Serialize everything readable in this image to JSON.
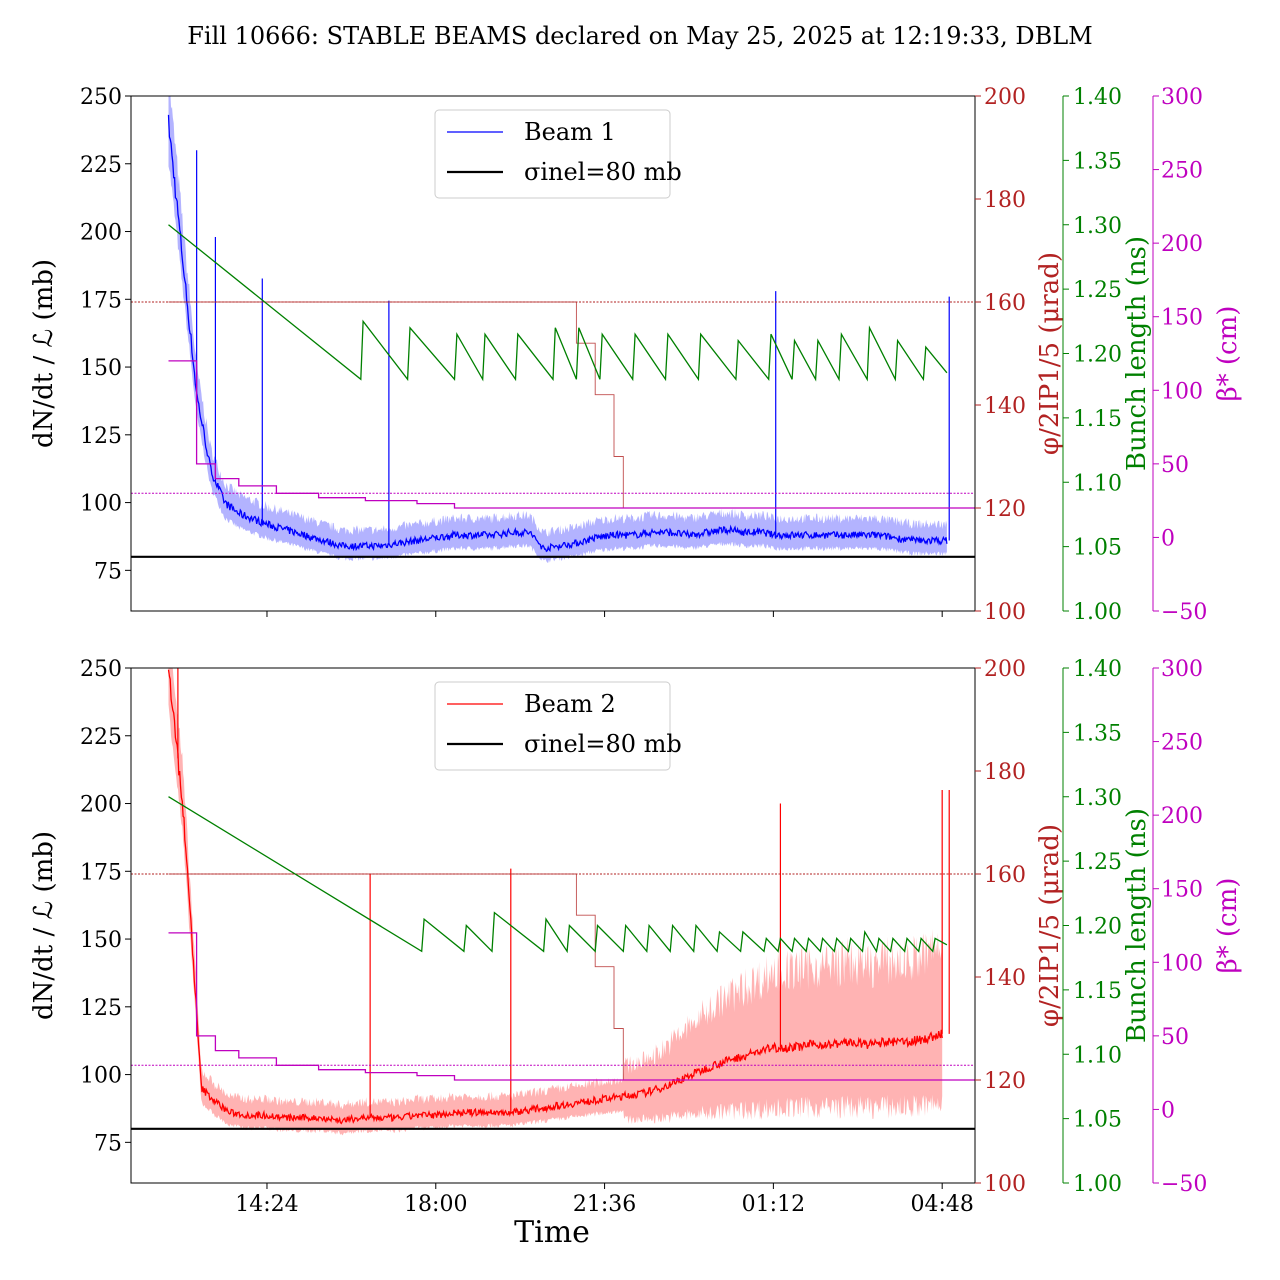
{
  "title": "Fill 10666: STABLE BEAMS declared on May 25, 2025 at 12:19:33, DBLM",
  "colors": {
    "beam1": "#0000ff",
    "beam1_band": "#9999ff",
    "beam2": "#ff0000",
    "beam2_band": "#ff9999",
    "bunch": "#008000",
    "crossing": "#b22222",
    "beta": "#bf00bf",
    "ref": "#000000"
  },
  "x_axis": {
    "label": "Time",
    "ticks": [
      "14:24",
      "18:00",
      "21:36",
      "01:12",
      "04:48"
    ],
    "tick_hours": [
      14.4,
      18.0,
      21.6,
      25.2,
      28.8
    ],
    "xlim_hours": [
      11.5,
      29.5
    ]
  },
  "axes_common": {
    "ylabel_main": "dN/dt / ℒ (mb)",
    "main_ylim": [
      60,
      250
    ],
    "main_ticks": [
      "75",
      "100",
      "125",
      "150",
      "175",
      "200",
      "225",
      "250"
    ],
    "crossing_label": "φ/2IP1/5 (μrad)",
    "crossing_ylim": [
      100,
      200
    ],
    "crossing_ticks": [
      "100",
      "120",
      "140",
      "160",
      "180",
      "200"
    ],
    "bunch_label": "Bunch length (ns)",
    "bunch_ylim": [
      1.0,
      1.4
    ],
    "bunch_ticks": [
      "1.00",
      "1.05",
      "1.10",
      "1.15",
      "1.20",
      "1.25",
      "1.30",
      "1.35",
      "1.40"
    ],
    "beta_label": "β* (cm)",
    "beta_ylim": [
      -50,
      300
    ],
    "beta_ticks": [
      "−50",
      "0",
      "50",
      "100",
      "150",
      "200",
      "250",
      "300"
    ],
    "ref_label": "σinel=80 mb",
    "ref_value": 80
  },
  "chart_data": [
    {
      "type": "line",
      "panel": "top",
      "legend_beam": "Beam 1",
      "legend_ref": "σinel=80 mb",
      "legend_position": "upper-center",
      "series": [
        {
          "name": "Beam 1",
          "x_hours": [
            12.3,
            12.6,
            12.9,
            13.2,
            13.5,
            13.8,
            14.1,
            14.4,
            14.8,
            15.2,
            15.6,
            16.0,
            16.4,
            16.8,
            17.2,
            17.6,
            18.0,
            18.4,
            18.8,
            19.2,
            19.6,
            20.0,
            20.3,
            20.6,
            21.0,
            21.4,
            21.8,
            22.2,
            22.6,
            23.0,
            23.4,
            23.8,
            24.2,
            24.6,
            25.0,
            25.2,
            25.4,
            25.8,
            26.2,
            26.6,
            27.0,
            27.4,
            27.8,
            28.2,
            28.6,
            28.9
          ],
          "values": [
            240,
            190,
            140,
            112,
            100,
            96,
            94,
            92,
            90,
            88,
            86,
            84,
            84,
            84,
            85,
            86,
            87,
            88,
            88,
            88,
            89,
            89,
            83,
            84,
            85,
            87,
            88,
            88,
            89,
            89,
            88,
            89,
            90,
            89,
            89,
            88,
            88,
            88,
            88,
            88,
            88,
            88,
            87,
            86,
            86,
            86
          ]
        },
        {
          "name": "Bunch length",
          "x_hours": [
            12.3,
            16.4,
            16.45,
            17.4,
            17.45,
            18.4,
            18.45,
            19.0,
            19.05,
            19.7,
            19.75,
            20.5,
            20.55,
            21.0,
            21.05,
            21.5,
            21.55,
            22.2,
            22.25,
            22.9,
            22.95,
            23.6,
            23.65,
            24.4,
            24.45,
            25.1,
            25.15,
            25.6,
            25.65,
            26.1,
            26.15,
            26.6,
            26.65,
            27.2,
            27.25,
            27.8,
            27.85,
            28.4,
            28.45,
            28.9
          ],
          "values": [
            1.3,
            1.18,
            1.225,
            1.18,
            1.22,
            1.18,
            1.215,
            1.18,
            1.215,
            1.18,
            1.215,
            1.18,
            1.22,
            1.18,
            1.22,
            1.18,
            1.215,
            1.18,
            1.215,
            1.18,
            1.215,
            1.18,
            1.215,
            1.18,
            1.21,
            1.18,
            1.215,
            1.18,
            1.21,
            1.18,
            1.21,
            1.18,
            1.215,
            1.18,
            1.22,
            1.18,
            1.21,
            1.18,
            1.205,
            1.185
          ]
        },
        {
          "name": "Crossing angle",
          "x_hours": [
            12.3,
            20.6,
            21.0,
            21.4,
            21.8,
            22.0,
            29.5
          ],
          "values": [
            160,
            160,
            152,
            142,
            130,
            120,
            120
          ]
        },
        {
          "name": "Beta*",
          "x_hours": [
            12.3,
            12.7,
            12.9,
            13.3,
            13.8,
            14.6,
            15.5,
            16.5,
            17.6,
            18.4,
            29.5
          ],
          "values": [
            120,
            120,
            50,
            40,
            35,
            30,
            27,
            25,
            23,
            20,
            20
          ]
        }
      ],
      "crossing_ref": 160,
      "beta_ref": 30
    },
    {
      "type": "line",
      "panel": "bottom",
      "legend_beam": "Beam 2",
      "legend_ref": "σinel=80 mb",
      "legend_position": "upper-center",
      "series": [
        {
          "name": "Beam 2",
          "x_hours": [
            12.3,
            12.6,
            12.8,
            13.0,
            13.3,
            13.6,
            14.0,
            14.4,
            14.8,
            15.2,
            15.6,
            16.0,
            16.4,
            16.8,
            17.2,
            17.6,
            18.0,
            18.4,
            18.8,
            19.2,
            19.6,
            20.0,
            20.4,
            20.8,
            21.2,
            21.6,
            22.0,
            22.4,
            22.8,
            23.2,
            23.6,
            24.0,
            24.4,
            24.8,
            25.2,
            25.6,
            26.0,
            26.4,
            26.8,
            27.2,
            27.6,
            28.0,
            28.4,
            28.8
          ],
          "values": [
            250,
            200,
            150,
            95,
            90,
            86,
            85,
            85,
            84,
            84,
            84,
            83,
            84,
            84,
            84,
            85,
            85,
            86,
            86,
            86,
            86,
            87,
            88,
            89,
            90,
            91,
            92,
            93,
            95,
            98,
            101,
            104,
            106,
            108,
            110,
            110,
            111,
            111,
            112,
            111,
            112,
            112,
            113,
            115
          ]
        },
        {
          "name": "Bunch length",
          "x_hours": [
            12.3,
            17.7,
            17.75,
            18.6,
            18.65,
            19.2,
            19.25,
            20.3,
            20.35,
            20.8,
            20.85,
            21.4,
            21.45,
            22.0,
            22.05,
            22.5,
            22.55,
            23.0,
            23.05,
            23.5,
            23.55,
            24.0,
            24.05,
            24.5,
            24.55,
            25.0,
            25.05,
            25.3,
            25.35,
            25.6,
            25.65,
            25.9,
            25.95,
            26.2,
            26.25,
            26.5,
            26.55,
            26.8,
            26.85,
            27.1,
            27.15,
            27.4,
            27.45,
            27.7,
            27.75,
            28.0,
            28.05,
            28.3,
            28.35,
            28.6,
            28.65,
            28.9
          ],
          "values": [
            1.3,
            1.18,
            1.205,
            1.18,
            1.2,
            1.18,
            1.21,
            1.18,
            1.205,
            1.18,
            1.2,
            1.18,
            1.2,
            1.18,
            1.2,
            1.18,
            1.2,
            1.18,
            1.2,
            1.18,
            1.2,
            1.18,
            1.195,
            1.18,
            1.195,
            1.18,
            1.19,
            1.18,
            1.19,
            1.18,
            1.19,
            1.18,
            1.19,
            1.18,
            1.19,
            1.18,
            1.19,
            1.18,
            1.19,
            1.18,
            1.195,
            1.18,
            1.19,
            1.18,
            1.19,
            1.18,
            1.19,
            1.18,
            1.19,
            1.18,
            1.19,
            1.185
          ]
        },
        {
          "name": "Crossing angle",
          "x_hours": [
            12.3,
            20.6,
            21.0,
            21.4,
            21.8,
            22.0,
            29.5
          ],
          "values": [
            160,
            160,
            152,
            142,
            130,
            120,
            120
          ]
        },
        {
          "name": "Beta*",
          "x_hours": [
            12.3,
            12.7,
            12.9,
            13.3,
            13.8,
            14.6,
            15.5,
            16.5,
            17.6,
            18.4,
            29.5
          ],
          "values": [
            120,
            120,
            50,
            40,
            35,
            30,
            27,
            25,
            23,
            20,
            20
          ]
        }
      ],
      "crossing_ref": 160,
      "beta_ref": 30
    }
  ]
}
